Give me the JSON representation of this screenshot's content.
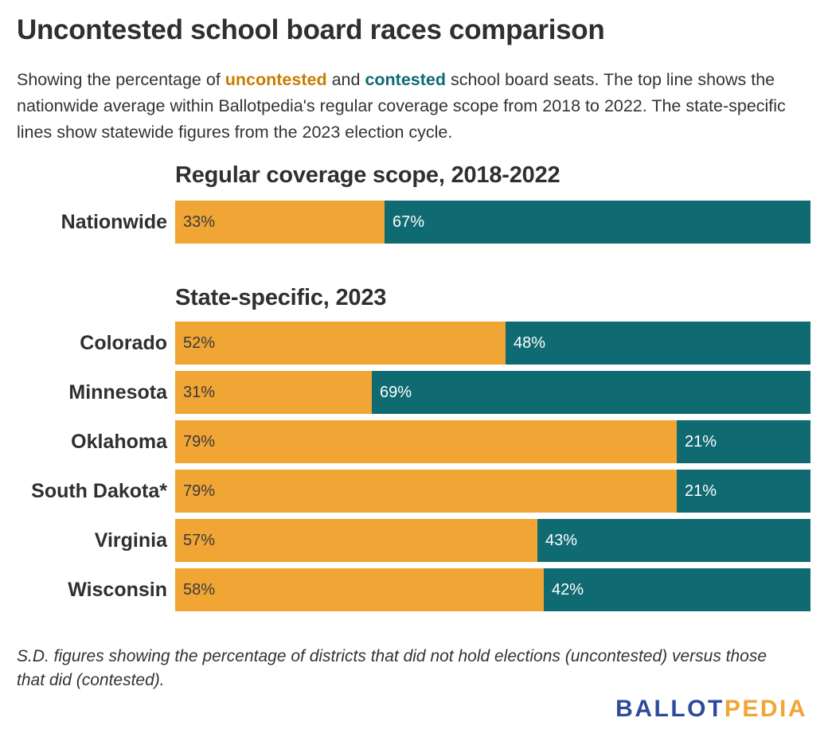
{
  "title": "Uncontested school board races comparison",
  "subtitle": {
    "part1": "Showing the percentage of ",
    "uncontested": "uncontested",
    "part2": " and ",
    "contested": "contested",
    "part3": " school board seats. The top line shows the nationwide average within Ballotpedia's regular coverage scope from 2018 to 2022. The state-specific lines show statewide figures from the 2023 election cycle."
  },
  "colors": {
    "uncontested": "#f0a535",
    "contested": "#0f6a72",
    "brand_blue": "#2f4a9a",
    "brand_orange": "#f0a535"
  },
  "footnote": "S.D. figures showing the percentage of districts that did not hold elections (uncontested) versus those that did (contested).",
  "brand": {
    "part1": "BALLOT",
    "part2": "PEDIA"
  },
  "chart_data": {
    "type": "bar",
    "orientation": "horizontal",
    "stacked": true,
    "percent_stacked": true,
    "sections": [
      {
        "title": "Regular coverage scope, 2018-2022",
        "categories": [
          "Nationwide"
        ],
        "series": [
          {
            "name": "uncontested",
            "values": [
              33
            ],
            "labels": [
              "33%"
            ]
          },
          {
            "name": "contested",
            "values": [
              67
            ],
            "labels": [
              "67%"
            ]
          }
        ]
      },
      {
        "title": "State-specific, 2023",
        "categories": [
          "Colorado",
          "Minnesota",
          "Oklahoma",
          "South Dakota*",
          "Virginia",
          "Wisconsin"
        ],
        "series": [
          {
            "name": "uncontested",
            "values": [
              52,
              31,
              79,
              79,
              57,
              58
            ],
            "labels": [
              "52%",
              "31%",
              "79%",
              "79%",
              "57%",
              "58%"
            ]
          },
          {
            "name": "contested",
            "values": [
              48,
              69,
              21,
              21,
              43,
              42
            ],
            "labels": [
              "48%",
              "69%",
              "21%",
              "21%",
              "43%",
              "42%"
            ]
          }
        ]
      }
    ],
    "xlim": [
      0,
      100
    ],
    "grid": false,
    "legend": "none"
  }
}
